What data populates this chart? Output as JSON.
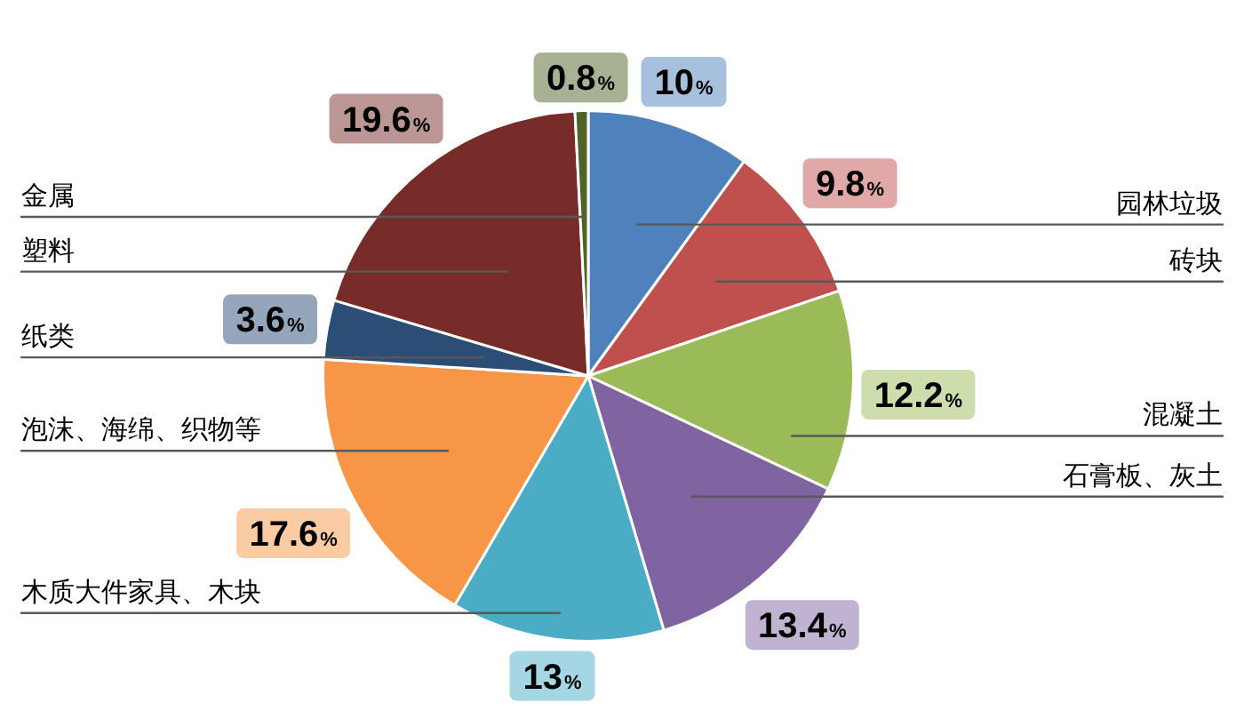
{
  "chart_data": {
    "type": "pie",
    "categories": [
      "园林垃圾",
      "砖块",
      "混凝土",
      "石膏板、灰土",
      "木质大件家具、木块",
      "泡沫、海绵、织物等",
      "纸类",
      "塑料",
      "金属"
    ],
    "values": [
      10,
      9.8,
      12.2,
      13.4,
      13,
      17.6,
      3.6,
      19.6,
      0.8
    ],
    "colors": [
      "#4f81bd",
      "#c0504d",
      "#9bbb59",
      "#8064a2",
      "#4bacc6",
      "#f79646",
      "#2c4d75",
      "#772c2a",
      "#4f6228"
    ],
    "value_labels": [
      "10%",
      "9.8%",
      "12.2%",
      "13.4%",
      "13%",
      "17.6%",
      "3.6%",
      "19.6%",
      "0.8%"
    ],
    "legend": false
  }
}
